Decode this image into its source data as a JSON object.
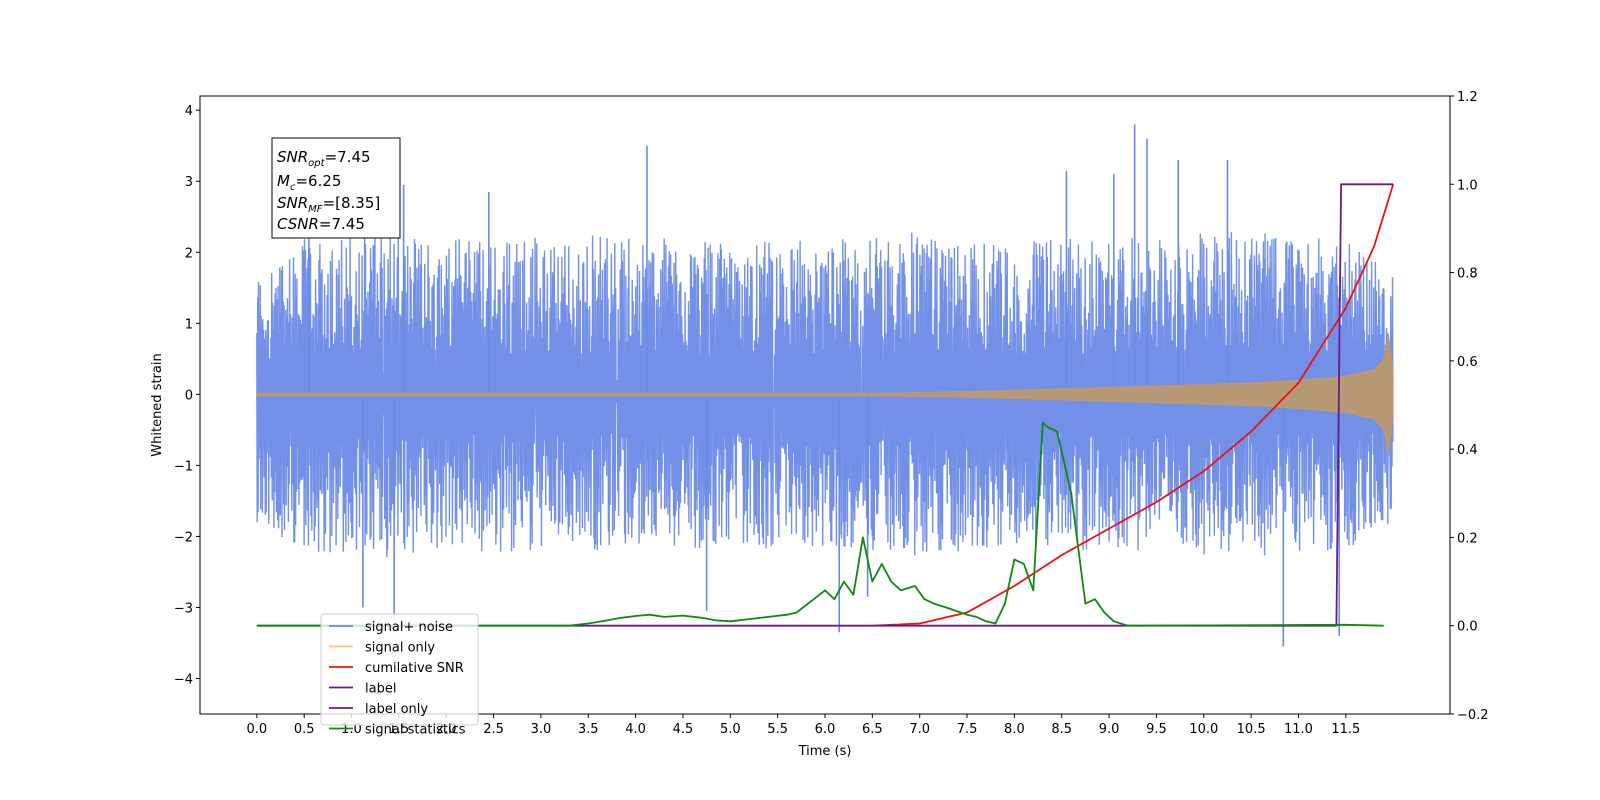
{
  "chart_data": {
    "type": "line",
    "xlabel": "Time (s)",
    "ylabel": "Whitened strain",
    "xlim": [
      -0.6,
      12.6
    ],
    "ylim": [
      -4.5,
      4.2
    ],
    "ylim_right": [
      -0.2,
      1.2
    ],
    "x_ticks": [
      0.0,
      0.5,
      1.0,
      1.5,
      2.0,
      2.5,
      3.0,
      3.5,
      4.0,
      4.5,
      5.0,
      5.5,
      6.0,
      6.5,
      7.0,
      7.5,
      8.0,
      8.5,
      9.0,
      9.5,
      10.0,
      10.5,
      11.0,
      11.5
    ],
    "x_tick_labels": [
      "0.0",
      "0.5",
      "1.0",
      "1.5",
      "2.0",
      "2.5",
      "3.0",
      "3.5",
      "4.0",
      "4.5",
      "5.0",
      "5.5",
      "6.0",
      "6.5",
      "7.0",
      "7.5",
      "8.0",
      "8.5",
      "9.0",
      "9.5",
      "10.0",
      "10.5",
      "11.0",
      "11.5"
    ],
    "y_ticks": [
      -4,
      -3,
      -2,
      -1,
      0,
      1,
      2,
      3,
      4
    ],
    "y_tick_labels": [
      "−4",
      "−3",
      "−2",
      "−1",
      "0",
      "1",
      "2",
      "3",
      "4"
    ],
    "y_ticks_right": [
      -0.2,
      0.0,
      0.2,
      0.4,
      0.6,
      0.8,
      1.0,
      1.2
    ],
    "y_tick_labels_right": [
      "−0.2",
      "0.0",
      "0.2",
      "0.4",
      "0.6",
      "0.8",
      "1.0",
      "1.2"
    ],
    "grid": false,
    "legend_position": "lower-left",
    "legend": [
      {
        "label": "signal+ noise",
        "color": "#6a8ae6"
      },
      {
        "label": "signal only",
        "color": "#ffc66e"
      },
      {
        "label": "cumilative SNR",
        "color": "#ee1111"
      },
      {
        "label": "label",
        "color": "#6a1a80"
      },
      {
        "label": "label only",
        "color": "#6a1a80"
      },
      {
        "label": "signal statistics",
        "color": "#118811"
      }
    ],
    "stats_box": {
      "snr_opt": {
        "sym": "SNR",
        "sub": "opt",
        "val": "=7.45"
      },
      "mc": {
        "sym": "M",
        "sub": "c",
        "val": "=6.25"
      },
      "snr_mf": {
        "sym": "SNR",
        "sub": "MF",
        "val": "=[8.35]"
      },
      "csnr": {
        "sym": "CSNR",
        "val": "=7.45"
      }
    },
    "series": [
      {
        "name": "signal+ noise",
        "axis": "left",
        "color": "#6a8ae6",
        "x_range": [
          0.0,
          12.0
        ],
        "envelope_upper": [
          1.8,
          2.2,
          2.3,
          2.4,
          2.2,
          2.3,
          2.2,
          2.3,
          2.2,
          2.2,
          2.1,
          2.2,
          2.2,
          2.2,
          2.3,
          2.2,
          2.1,
          2.3,
          2.2,
          2.2,
          2.3,
          2.3,
          2.2,
          2.2,
          1.8
        ],
        "envelope_lower": [
          -1.8,
          -2.2,
          -2.3,
          -2.4,
          -2.2,
          -2.3,
          -2.2,
          -2.2,
          -2.2,
          -2.2,
          -2.1,
          -2.2,
          -2.2,
          -2.2,
          -2.3,
          -2.2,
          -2.1,
          -2.2,
          -2.2,
          -2.2,
          -2.3,
          -2.3,
          -2.2,
          -2.2,
          -1.8
        ],
        "spikes": [
          [
            0.55,
            2.85
          ],
          [
            1.12,
            -3.0
          ],
          [
            1.45,
            -3.15
          ],
          [
            1.55,
            2.95
          ],
          [
            2.45,
            2.85
          ],
          [
            4.12,
            3.5
          ],
          [
            4.75,
            -3.05
          ],
          [
            6.15,
            -3.35
          ],
          [
            6.45,
            -2.85
          ],
          [
            8.55,
            3.15
          ],
          [
            9.05,
            3.1
          ],
          [
            9.27,
            3.8
          ],
          [
            9.4,
            3.6
          ],
          [
            9.73,
            3.3
          ],
          [
            10.25,
            3.3
          ],
          [
            10.84,
            -3.55
          ],
          [
            11.43,
            -3.4
          ]
        ]
      },
      {
        "name": "signal only",
        "axis": "left",
        "color": "#bb9a6f",
        "x": [
          0.0,
          6.5,
          7.5,
          8.0,
          8.5,
          9.0,
          9.5,
          10.0,
          10.5,
          11.0,
          11.5,
          11.8,
          11.9,
          11.95,
          12.0
        ],
        "amplitude": [
          0.02,
          0.02,
          0.04,
          0.06,
          0.08,
          0.1,
          0.12,
          0.14,
          0.16,
          0.2,
          0.26,
          0.35,
          0.5,
          0.85,
          0.3
        ]
      },
      {
        "name": "cumilative SNR",
        "axis": "right",
        "color": "#ee1111",
        "x": [
          6.5,
          7.0,
          7.5,
          8.0,
          8.5,
          9.0,
          9.5,
          10.0,
          10.5,
          11.0,
          11.5,
          11.8,
          12.0
        ],
        "values": [
          0.0,
          0.005,
          0.03,
          0.09,
          0.16,
          0.22,
          0.28,
          0.35,
          0.44,
          0.55,
          0.72,
          0.86,
          1.0
        ]
      },
      {
        "name": "label",
        "axis": "right",
        "color": "#6a1a80",
        "x": [
          0.0,
          11.4,
          11.45,
          12.0
        ],
        "values": [
          0.0,
          0.0,
          1.0,
          1.0
        ]
      },
      {
        "name": "signal statistics",
        "axis": "right",
        "color": "#118811",
        "x": [
          0.0,
          3.3,
          3.5,
          3.7,
          3.85,
          4.0,
          4.15,
          4.3,
          4.5,
          4.7,
          4.85,
          5.0,
          5.2,
          5.4,
          5.6,
          5.7,
          5.85,
          6.0,
          6.1,
          6.2,
          6.3,
          6.4,
          6.5,
          6.6,
          6.7,
          6.8,
          6.95,
          7.05,
          7.15,
          7.3,
          7.5,
          7.6,
          7.7,
          7.8,
          7.9,
          8.0,
          8.1,
          8.2,
          8.3,
          8.35,
          8.45,
          8.6,
          8.75,
          8.85,
          8.95,
          9.05,
          9.2,
          11.5,
          11.9
        ],
        "values": [
          0.0,
          0.0,
          0.005,
          0.012,
          0.018,
          0.022,
          0.025,
          0.02,
          0.023,
          0.018,
          0.012,
          0.01,
          0.015,
          0.02,
          0.025,
          0.03,
          0.055,
          0.08,
          0.06,
          0.1,
          0.07,
          0.2,
          0.1,
          0.14,
          0.1,
          0.08,
          0.09,
          0.06,
          0.05,
          0.04,
          0.025,
          0.02,
          0.01,
          0.005,
          0.05,
          0.15,
          0.14,
          0.08,
          0.46,
          0.45,
          0.44,
          0.3,
          0.05,
          0.06,
          0.03,
          0.01,
          0.0,
          0.002,
          0.0
        ]
      }
    ]
  }
}
